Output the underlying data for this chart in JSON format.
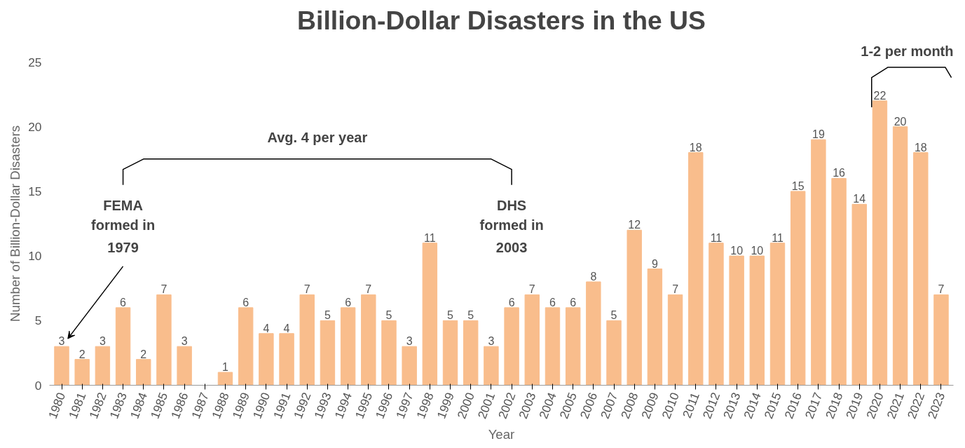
{
  "chart_data": {
    "type": "bar",
    "title": "Billion-Dollar Disasters in the US",
    "xlabel": "Year",
    "ylabel": "Number of Billion-Dollar Disasters",
    "categories": [
      "1980",
      "1981",
      "1982",
      "1983",
      "1984",
      "1985",
      "1986",
      "1987",
      "1988",
      "1989",
      "1990",
      "1991",
      "1992",
      "1993",
      "1994",
      "1995",
      "1996",
      "1997",
      "1998",
      "1999",
      "2000",
      "2001",
      "2002",
      "2003",
      "2004",
      "2005",
      "2006",
      "2007",
      "2008",
      "2009",
      "2010",
      "2011",
      "2012",
      "2013",
      "2014",
      "2015",
      "2016",
      "2017",
      "2018",
      "2019",
      "2020",
      "2021",
      "2022",
      "2023"
    ],
    "values": [
      3,
      2,
      3,
      6,
      2,
      7,
      3,
      0,
      1,
      6,
      4,
      4,
      7,
      5,
      6,
      7,
      5,
      3,
      11,
      5,
      5,
      3,
      6,
      7,
      6,
      6,
      8,
      5,
      12,
      9,
      7,
      18,
      11,
      10,
      10,
      11,
      15,
      19,
      16,
      14,
      22,
      20,
      18,
      7
    ],
    "value_labels": [
      "3",
      "2",
      "3",
      "6",
      "2",
      "7",
      "3",
      null,
      "1",
      "6",
      "4",
      "4",
      "7",
      "5",
      "6",
      "7",
      "5",
      "3",
      "11",
      "5",
      "5",
      "3",
      "6",
      "7",
      "6",
      "6",
      "8",
      "5",
      "12",
      "9",
      "7",
      "18",
      "11",
      "10",
      "10",
      "11",
      "15",
      "19",
      "16",
      "14",
      "22",
      "20",
      "18",
      "7"
    ],
    "color": "#f9bd8c",
    "ylim": [
      0,
      25
    ],
    "yticks": [
      0,
      5,
      10,
      15,
      20,
      25
    ],
    "grid": false,
    "annotations": [
      "Avg. 4 per year",
      "FEMA formed in 1979",
      "DHS formed in 2003",
      "1-2 per month"
    ]
  }
}
